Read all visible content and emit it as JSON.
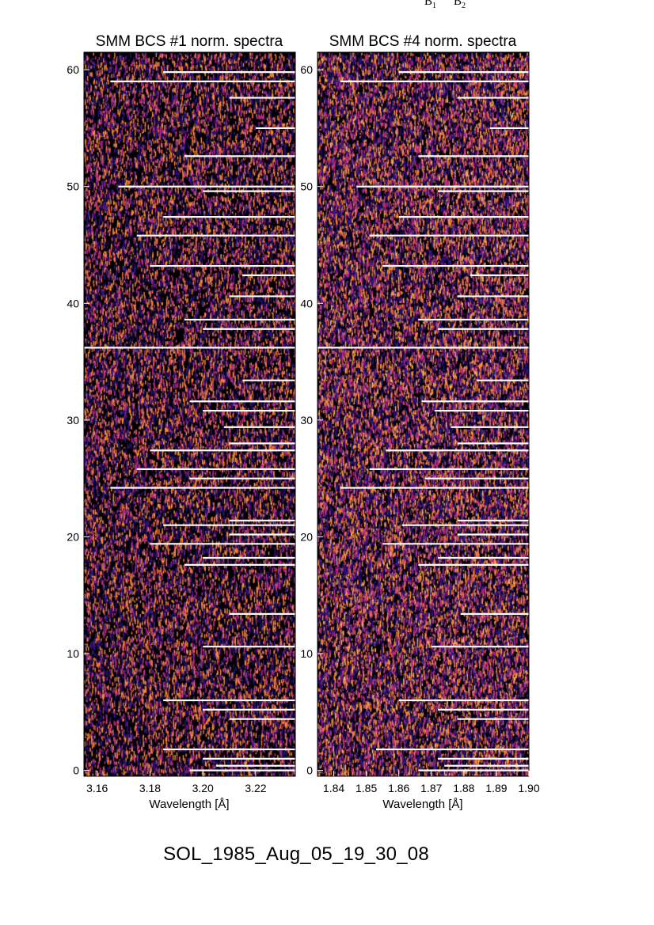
{
  "header_labels": {
    "b1": "B",
    "b1_sub": "1",
    "b2": "B",
    "b2_sub": "2"
  },
  "footer": {
    "event_id": "SOL_1985_Aug_05_19_30_08"
  },
  "colors": {
    "background": "#000000",
    "low": "#2a1580",
    "mid": "#c0308a",
    "high": "#ff8c3a",
    "peak": "#ffc060",
    "gap": "#ffffff"
  },
  "chart_data": [
    {
      "type": "heatmap",
      "title": "SMM BCS #1 norm. spectra",
      "xlabel": "Wavelength [Å]",
      "ylabel": "",
      "xlim": [
        3.155,
        3.235
      ],
      "ylim": [
        -0.5,
        61.5
      ],
      "xticks": [
        3.16,
        3.18,
        3.2,
        3.22
      ],
      "xtick_labels": [
        "3.16",
        "3.18",
        "3.20",
        "3.22"
      ],
      "yticks": [
        0,
        10,
        20,
        30,
        40,
        50,
        60
      ],
      "ytick_labels": [
        "0",
        "10",
        "20",
        "30",
        "40",
        "50",
        "60"
      ],
      "colormap": [
        "#000000",
        "#2a1580",
        "#c0308a",
        "#ff8c3a"
      ],
      "intensity": 0.55,
      "gaps": [
        {
          "y": 0.0,
          "x_start": 3.195
        },
        {
          "y": 0.4,
          "x_start": 3.205
        },
        {
          "y": 1.0,
          "x_start": 3.2
        },
        {
          "y": 1.8,
          "x_start": 3.185
        },
        {
          "y": 4.4,
          "x_start": 3.21
        },
        {
          "y": 5.2,
          "x_start": 3.2
        },
        {
          "y": 6.0,
          "x_start": 3.185
        },
        {
          "y": 10.6,
          "x_start": 3.2
        },
        {
          "y": 13.4,
          "x_start": 3.21
        },
        {
          "y": 17.6,
          "x_start": 3.193
        },
        {
          "y": 18.2,
          "x_start": 3.2
        },
        {
          "y": 19.4,
          "x_start": 3.18
        },
        {
          "y": 20.2,
          "x_start": 3.21
        },
        {
          "y": 21.0,
          "x_start": 3.185
        },
        {
          "y": 21.4,
          "x_start": 3.21
        },
        {
          "y": 24.2,
          "x_start": 3.165
        },
        {
          "y": 25.0,
          "x_start": 3.195
        },
        {
          "y": 25.8,
          "x_start": 3.175
        },
        {
          "y": 27.4,
          "x_start": 3.18
        },
        {
          "y": 28.0,
          "x_start": 3.21
        },
        {
          "y": 29.4,
          "x_start": 3.208
        },
        {
          "y": 30.8,
          "x_start": 3.2
        },
        {
          "y": 31.6,
          "x_start": 3.195
        },
        {
          "y": 33.4,
          "x_start": 3.215
        },
        {
          "y": 36.2,
          "x_start": 3.155
        },
        {
          "y": 37.8,
          "x_start": 3.2
        },
        {
          "y": 38.6,
          "x_start": 3.193
        },
        {
          "y": 40.6,
          "x_start": 3.21
        },
        {
          "y": 42.4,
          "x_start": 3.215
        },
        {
          "y": 43.2,
          "x_start": 3.18
        },
        {
          "y": 45.8,
          "x_start": 3.175
        },
        {
          "y": 47.4,
          "x_start": 3.185
        },
        {
          "y": 49.6,
          "x_start": 3.2
        },
        {
          "y": 50.0,
          "x_start": 3.168
        },
        {
          "y": 52.6,
          "x_start": 3.193
        },
        {
          "y": 55.0,
          "x_start": 3.22
        },
        {
          "y": 57.6,
          "x_start": 3.21
        },
        {
          "y": 59.0,
          "x_start": 3.165
        },
        {
          "y": 59.8,
          "x_start": 3.185
        }
      ]
    },
    {
      "type": "heatmap",
      "title": "SMM BCS #4 norm. spectra",
      "xlabel": "Wavelength [Å]",
      "ylabel": "",
      "xlim": [
        1.835,
        1.9
      ],
      "ylim": [
        -0.5,
        61.5
      ],
      "xticks": [
        1.84,
        1.85,
        1.86,
        1.87,
        1.88,
        1.89,
        1.9
      ],
      "xtick_labels": [
        "1.84",
        "1.85",
        "1.86",
        "1.87",
        "1.88",
        "1.89",
        "1.90"
      ],
      "yticks": [
        0,
        10,
        20,
        30,
        40,
        50,
        60
      ],
      "ytick_labels": [
        "0",
        "10",
        "20",
        "30",
        "40",
        "50",
        "60"
      ],
      "colormap": [
        "#000000",
        "#2a1580",
        "#c0308a",
        "#ff8c3a",
        "#ffc060"
      ],
      "intensity": 0.78,
      "gaps": [
        {
          "y": 0.0,
          "x_start": 1.866
        },
        {
          "y": 0.4,
          "x_start": 1.874
        },
        {
          "y": 1.0,
          "x_start": 1.872
        },
        {
          "y": 1.8,
          "x_start": 1.853
        },
        {
          "y": 4.4,
          "x_start": 1.878
        },
        {
          "y": 5.2,
          "x_start": 1.872
        },
        {
          "y": 6.0,
          "x_start": 1.86
        },
        {
          "y": 10.6,
          "x_start": 1.87
        },
        {
          "y": 13.4,
          "x_start": 1.879
        },
        {
          "y": 17.6,
          "x_start": 1.866
        },
        {
          "y": 18.2,
          "x_start": 1.872
        },
        {
          "y": 19.4,
          "x_start": 1.855
        },
        {
          "y": 20.2,
          "x_start": 1.878
        },
        {
          "y": 21.0,
          "x_start": 1.861
        },
        {
          "y": 21.4,
          "x_start": 1.878
        },
        {
          "y": 24.2,
          "x_start": 1.842
        },
        {
          "y": 25.0,
          "x_start": 1.868
        },
        {
          "y": 25.8,
          "x_start": 1.851
        },
        {
          "y": 27.4,
          "x_start": 1.856
        },
        {
          "y": 28.0,
          "x_start": 1.878
        },
        {
          "y": 29.4,
          "x_start": 1.876
        },
        {
          "y": 30.8,
          "x_start": 1.871
        },
        {
          "y": 31.6,
          "x_start": 1.867
        },
        {
          "y": 33.4,
          "x_start": 1.884
        },
        {
          "y": 36.2,
          "x_start": 1.835
        },
        {
          "y": 37.8,
          "x_start": 1.872
        },
        {
          "y": 38.6,
          "x_start": 1.866
        },
        {
          "y": 40.6,
          "x_start": 1.878
        },
        {
          "y": 42.4,
          "x_start": 1.882
        },
        {
          "y": 43.2,
          "x_start": 1.855
        },
        {
          "y": 45.8,
          "x_start": 1.851
        },
        {
          "y": 47.4,
          "x_start": 1.86
        },
        {
          "y": 49.6,
          "x_start": 1.872
        },
        {
          "y": 50.0,
          "x_start": 1.847
        },
        {
          "y": 52.6,
          "x_start": 1.866
        },
        {
          "y": 55.0,
          "x_start": 1.888
        },
        {
          "y": 57.6,
          "x_start": 1.878
        },
        {
          "y": 59.0,
          "x_start": 1.842
        },
        {
          "y": 59.8,
          "x_start": 1.86
        }
      ]
    }
  ]
}
